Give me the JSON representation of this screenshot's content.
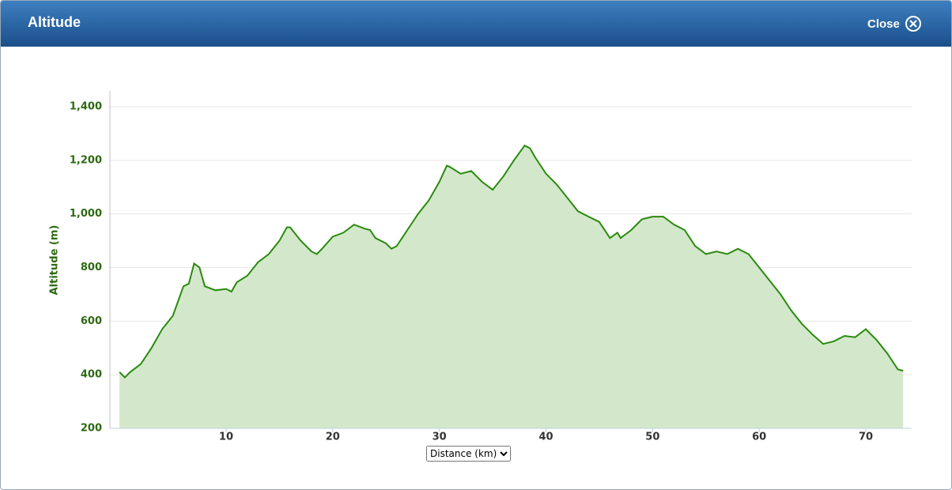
{
  "header": {
    "title": "Altitude",
    "close": "Close"
  },
  "chart_data": {
    "type": "area",
    "y_label": "Altitude (m)",
    "x_label": "Distance (km)",
    "color": "#2a8a0e",
    "fill": "#d3e8ca",
    "grid": true,
    "xlim": [
      -0.9,
      74.3
    ],
    "ylim": [
      200,
      1400
    ],
    "xticks": [
      10,
      20,
      30,
      40,
      50,
      60,
      70
    ],
    "yticks": [
      200,
      400,
      600,
      800,
      {
        "value": 1000,
        "label": "1,000"
      },
      {
        "value": 1200,
        "label": "1,200"
      },
      {
        "value": 1400,
        "label": "1,400"
      }
    ],
    "x": [
      0,
      0.5,
      1,
      2,
      3,
      4,
      5,
      6,
      6.5,
      7,
      7.5,
      8,
      9,
      10,
      10.5,
      11,
      12,
      13,
      14,
      15,
      15.7,
      16,
      17,
      18,
      18.5,
      19,
      20,
      21,
      22,
      23,
      23.5,
      24,
      25,
      25.5,
      26,
      27,
      28,
      29,
      30,
      30.7,
      31,
      32,
      33,
      34,
      35,
      36,
      37,
      38,
      38.5,
      39,
      40,
      41,
      42,
      43,
      44,
      45,
      46,
      46.7,
      47,
      48,
      49,
      50,
      51,
      52,
      53,
      54,
      55,
      56,
      57,
      58,
      59,
      60,
      61,
      62,
      63,
      64,
      65,
      66,
      67,
      68,
      69,
      70,
      71,
      72,
      73,
      73.5
    ],
    "values": [
      410,
      390,
      410,
      440,
      500,
      570,
      620,
      730,
      740,
      815,
      800,
      730,
      715,
      720,
      710,
      745,
      770,
      820,
      850,
      900,
      950,
      950,
      900,
      860,
      850,
      870,
      915,
      930,
      960,
      945,
      940,
      910,
      890,
      870,
      880,
      940,
      1000,
      1050,
      1120,
      1180,
      1175,
      1150,
      1160,
      1120,
      1090,
      1140,
      1200,
      1255,
      1245,
      1210,
      1150,
      1110,
      1060,
      1010,
      990,
      970,
      910,
      930,
      910,
      940,
      980,
      990,
      990,
      960,
      940,
      880,
      850,
      860,
      850,
      870,
      850,
      800,
      750,
      700,
      640,
      590,
      550,
      515,
      525,
      545,
      540,
      570,
      530,
      480,
      420,
      415
    ]
  }
}
